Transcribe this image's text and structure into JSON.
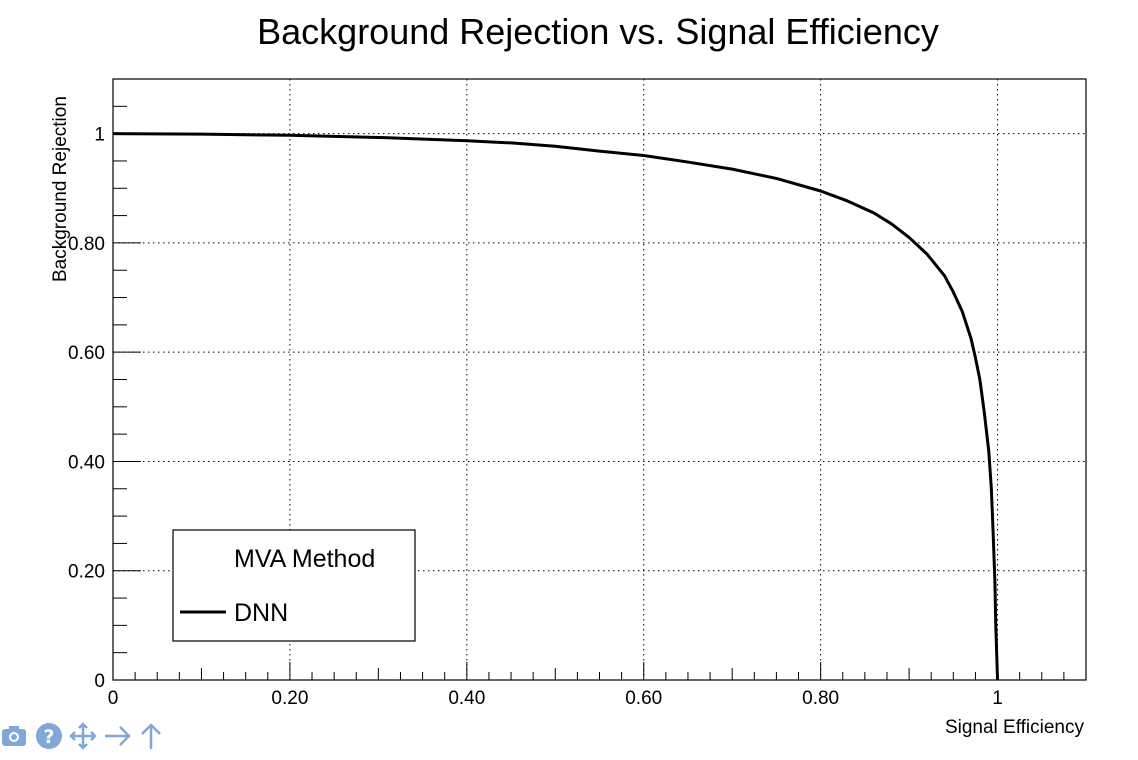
{
  "chart_data": {
    "type": "line",
    "title": "Background Rejection vs. Signal Efficiency",
    "xlabel": "Signal Efficiency",
    "ylabel": "Background Rejection",
    "xlim": [
      0,
      1.1
    ],
    "ylim": [
      0,
      1.1
    ],
    "xticks": [
      {
        "value": 0,
        "label": "0"
      },
      {
        "value": 0.2,
        "label": "0.20"
      },
      {
        "value": 0.4,
        "label": "0.40"
      },
      {
        "value": 0.6,
        "label": "0.60"
      },
      {
        "value": 0.8,
        "label": "0.80"
      },
      {
        "value": 1.0,
        "label": "1"
      }
    ],
    "yticks": [
      {
        "value": 0,
        "label": "0"
      },
      {
        "value": 0.2,
        "label": "0.20"
      },
      {
        "value": 0.4,
        "label": "0.40"
      },
      {
        "value": 0.6,
        "label": "0.60"
      },
      {
        "value": 0.8,
        "label": "0.80"
      },
      {
        "value": 1.0,
        "label": "1"
      }
    ],
    "grid": true,
    "legend": {
      "title": "MVA Method",
      "placement": "bottom-left"
    },
    "series": [
      {
        "name": "DNN",
        "color": "#000000",
        "x": [
          0,
          0.1,
          0.2,
          0.3,
          0.4,
          0.45,
          0.5,
          0.55,
          0.6,
          0.65,
          0.7,
          0.75,
          0.8,
          0.83,
          0.86,
          0.88,
          0.9,
          0.92,
          0.94,
          0.95,
          0.96,
          0.97,
          0.975,
          0.98,
          0.985,
          0.99,
          0.993,
          0.995,
          0.997,
          0.998,
          1.0
        ],
        "y": [
          1.0,
          0.999,
          0.997,
          0.993,
          0.987,
          0.983,
          0.977,
          0.968,
          0.96,
          0.948,
          0.935,
          0.918,
          0.895,
          0.877,
          0.855,
          0.835,
          0.81,
          0.78,
          0.74,
          0.71,
          0.675,
          0.625,
          0.59,
          0.55,
          0.49,
          0.42,
          0.35,
          0.27,
          0.18,
          0.1,
          0.0
        ]
      }
    ]
  },
  "toolbar": {
    "icons": [
      "camera-icon",
      "help-icon",
      "move-icon",
      "arrow-right-icon",
      "arrow-up-icon"
    ],
    "color": "#7fa8d8"
  }
}
